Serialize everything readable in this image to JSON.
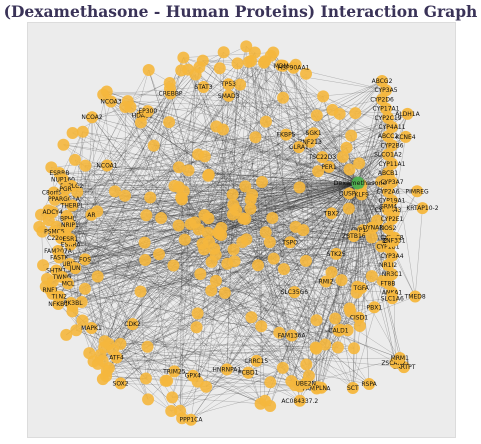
{
  "title": "(Dexamethasone - Human Proteins) Interaction Graph",
  "colors": {
    "node": "#f5b73d",
    "center": "#4caf50",
    "edge": "#2a2a2a",
    "background": "#ececec",
    "title": "#3a3358"
  },
  "center_node": "Dexamethasone",
  "chart_data": {
    "type": "network",
    "center": "Dexamethasone",
    "nodes": [
      "Dexamethasone",
      "ABCG2",
      "CYP3A5",
      "CYP2D6",
      "CYP17A1",
      "CYP2C19",
      "CYP4A11",
      "ABCC2",
      "CYP2B6",
      "SLCO1A2",
      "CYP11A1",
      "ABCB1",
      "CYP3A7",
      "CYP2A6",
      "CYP19A1",
      "CYP3A43",
      "CYP2E1",
      "NOS2",
      "CYP2C8",
      "CYP1B1",
      "CYP3A4",
      "NR1I2",
      "NR3C1",
      "FT8B",
      "ANKA1",
      "ESRRB",
      "NUP160",
      "PNPLC2",
      "C8orf59",
      "PPARGC1A",
      "THERPL",
      "ADCY4",
      "BPHL",
      "NRIP1",
      "PSMC5",
      "C22orf32",
      "ESRRA",
      "FAM207A",
      "FASTK",
      "UBLT",
      "SHTN1",
      "TWNG",
      "MCL",
      "RNF1",
      "TLN2",
      "UPK3BL",
      "PBX1",
      "AC084337.2",
      "SCT",
      "CARTPT",
      "KRTAP10-2",
      "ZSCAN21",
      "ZNF213",
      "ZNF7",
      "FAM173A",
      "FAM136A",
      "TBX2",
      "CYP1A1",
      "DYNAP",
      "GLRA1",
      "ZNF331",
      "TMED8",
      "SLC1A6",
      "GRM4",
      "ALDH1A",
      "TSPO",
      "KCNE4",
      "PIMREG",
      "MRM1",
      "RSPA",
      "SLC35G6",
      "STK25",
      "TGFA",
      "RMI2",
      "CISD1",
      "CALD1",
      "PLN",
      "UBE2N",
      "LRRC15",
      "PCBD1",
      "HNRNPA1",
      "PPP1CA",
      "GPX4",
      "TRIM25",
      "SOX2",
      "ATF4",
      "CDK2",
      "MAPK1",
      "NFKB1",
      "JUN",
      "FOS",
      "ESR1",
      "AR",
      "PGR",
      "NCOA1",
      "NCOA2",
      "NCOA3",
      "HDAC1",
      "EP300",
      "CREBBP",
      "STAT3",
      "SMAD3",
      "TP53",
      "MDM2",
      "HSP90AA1",
      "FKBP5",
      "SGK1",
      "TSC22D3",
      "PER1",
      "DUSP1",
      "KLF9",
      "ZBTB16"
    ],
    "edge_count": 900
  }
}
